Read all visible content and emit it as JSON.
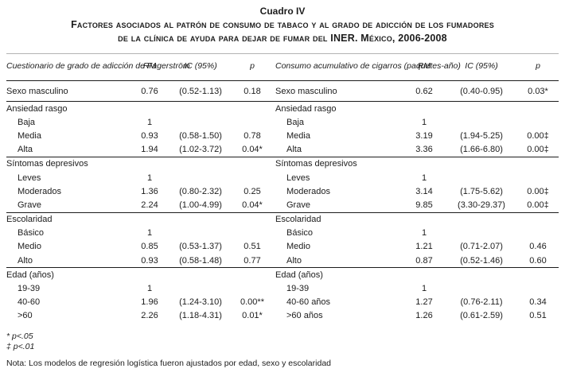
{
  "title": {
    "label": "Cuadro IV",
    "line1": "Factores asociados al patrón de consumo de tabaco y al grado de adicción de los fumadores",
    "line2": "de la clínica de ayuda para dejar de fumar del INER. México, 2006-2008"
  },
  "table": {
    "left": {
      "header": "Cuestionario de grado de adicción de Fagerström",
      "col_rm": "RM",
      "col_ic": "IC (95%)",
      "col_p": "p"
    },
    "right": {
      "header": "Consumo acumulativo de cigarros (paquetes-año)",
      "col_rm": "RM",
      "col_ic": "IC (95%)",
      "col_p": "p"
    },
    "rows": [
      {
        "rule_after": true,
        "left": {
          "label": "Sexo masculino",
          "rm": "0.76",
          "ic": "(0.52-1.13)",
          "p": "0.18"
        },
        "right": {
          "label": "Sexo masculino",
          "rm": "0.62",
          "ic": "(0.40-0.95)",
          "p": "0.03*"
        }
      },
      {
        "left": {
          "label": "Ansiedad rasgo"
        },
        "right": {
          "label": "Ansiedad rasgo"
        }
      },
      {
        "left": {
          "label": "Baja",
          "indent": true,
          "rm": "1"
        },
        "right": {
          "label": "Baja",
          "indent": true,
          "rm": "1"
        }
      },
      {
        "left": {
          "label": "Media",
          "indent": true,
          "rm": "0.93",
          "ic": "(0.58-1.50)",
          "p": "0.78"
        },
        "right": {
          "label": "Media",
          "indent": true,
          "rm": "3.19",
          "ic": "(1.94-5.25)",
          "p": "0.00‡"
        }
      },
      {
        "rule_after": true,
        "left": {
          "label": "Alta",
          "indent": true,
          "rm": "1.94",
          "ic": "(1.02-3.72)",
          "p": "0.04*"
        },
        "right": {
          "label": "Alta",
          "indent": true,
          "rm": "3.36",
          "ic": "(1.66-6.80)",
          "p": "0.00‡"
        }
      },
      {
        "left": {
          "label": "Síntomas depresivos"
        },
        "right": {
          "label": "Síntomas depresivos"
        }
      },
      {
        "left": {
          "label": "Leves",
          "indent": true,
          "rm": "1"
        },
        "right": {
          "label": "Leves",
          "indent": true,
          "rm": "1"
        }
      },
      {
        "left": {
          "label": "Moderados",
          "indent": true,
          "rm": "1.36",
          "ic": "(0.80-2.32)",
          "p": "0.25"
        },
        "right": {
          "label": "Moderados",
          "indent": true,
          "rm": "3.14",
          "ic": "(1.75-5.62)",
          "p": "0.00‡"
        }
      },
      {
        "rule_after": true,
        "left": {
          "label": "Grave",
          "indent": true,
          "rm": "2.24",
          "ic": "(1.00-4.99)",
          "p": "0.04*"
        },
        "right": {
          "label": "Grave",
          "indent": true,
          "rm": "9.85",
          "ic": "(3.30-29.37)",
          "p": "0.00‡"
        }
      },
      {
        "left": {
          "label": "Escolaridad"
        },
        "right": {
          "label": "Escolaridad"
        }
      },
      {
        "left": {
          "label": "Básico",
          "indent": true,
          "rm": "1"
        },
        "right": {
          "label": "Básico",
          "indent": true,
          "rm": "1"
        }
      },
      {
        "left": {
          "label": "Medio",
          "indent": true,
          "rm": "0.85",
          "ic": "(0.53-1.37)",
          "p": "0.51"
        },
        "right": {
          "label": "Medio",
          "indent": true,
          "rm": "1.21",
          "ic": "(0.71-2.07)",
          "p": "0.46"
        }
      },
      {
        "rule_after": true,
        "left": {
          "label": "Alto",
          "indent": true,
          "rm": "0.93",
          "ic": "(0.58-1.48)",
          "p": "0.77"
        },
        "right": {
          "label": "Alto",
          "indent": true,
          "rm": "0.87",
          "ic": "(0.52-1.46)",
          "p": "0.60"
        }
      },
      {
        "left": {
          "label": "Edad (años)"
        },
        "right": {
          "label": "Edad (años)"
        }
      },
      {
        "left": {
          "label": "19-39",
          "indent": true,
          "rm": "1"
        },
        "right": {
          "label": "19-39",
          "indent": true,
          "rm": "1"
        }
      },
      {
        "left": {
          "label": "40-60",
          "indent": true,
          "rm": "1.96",
          "ic": "(1.24-3.10)",
          "p": "0.00**"
        },
        "right": {
          "label": "40-60 años",
          "indent": true,
          "rm": "1.27",
          "ic": "(0.76-2.11)",
          "p": "0.34"
        }
      },
      {
        "left": {
          "label": ">60",
          "indent": true,
          "rm": "2.26",
          "ic": "(1.18-4.31)",
          "p": "0.01*"
        },
        "right": {
          "label": ">60 años",
          "indent": true,
          "rm": "1.26",
          "ic": "(0.61-2.59)",
          "p": "0.51"
        }
      }
    ]
  },
  "footnotes": [
    "* p<.05",
    "‡ p<.01"
  ],
  "note": "Nota: Los modelos de regresión logística fueron ajustados por edad, sexo y escolaridad"
}
